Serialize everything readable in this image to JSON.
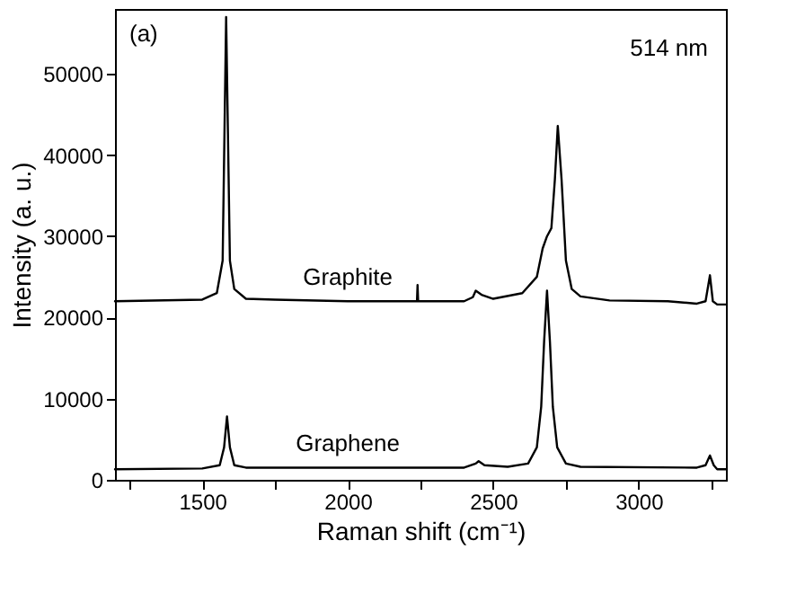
{
  "chart_data": {
    "type": "line",
    "xlabel": "Raman shift (cm⁻¹)",
    "ylabel": "Intensity (a. u.)",
    "annotations": [
      "(a)",
      "514 nm"
    ],
    "xlim": [
      1200,
      3300
    ],
    "ylim": [
      0,
      58000
    ],
    "xticks": [
      {
        "value": 1250,
        "label": null
      },
      1500,
      {
        "value": 1750,
        "label": null
      },
      2000,
      {
        "value": 2250,
        "label": null
      },
      2500,
      {
        "value": 2750,
        "label": null
      },
      3000,
      {
        "value": 3250,
        "label": null
      }
    ],
    "yticks": [
      0,
      10000,
      20000,
      30000,
      40000,
      50000
    ],
    "grid": false,
    "marker": "none",
    "line_style": "solid",
    "series": [
      {
        "name": "Graphite",
        "color": "#000000",
        "x": [
          1200,
          1500,
          1550,
          1570,
          1582,
          1595,
          1610,
          1650,
          1750,
          2000,
          2238,
          2240,
          2242,
          2400,
          2430,
          2440,
          2460,
          2500,
          2600,
          2650,
          2670,
          2685,
          2700,
          2712,
          2722,
          2735,
          2750,
          2770,
          2800,
          2900,
          3100,
          3200,
          3230,
          3245,
          3255,
          3270,
          3300
        ],
        "values": [
          22000,
          22200,
          23000,
          27000,
          57000,
          27000,
          23500,
          22300,
          22200,
          22000,
          22000,
          24000,
          22000,
          22000,
          22500,
          23300,
          22800,
          22300,
          23000,
          25000,
          28500,
          30000,
          31000,
          37000,
          43600,
          37000,
          27000,
          23500,
          22600,
          22100,
          22000,
          21700,
          22000,
          25200,
          22000,
          21600,
          21600
        ]
      },
      {
        "name": "Graphene",
        "color": "#000000",
        "x": [
          1200,
          1500,
          1560,
          1575,
          1585,
          1595,
          1610,
          1650,
          2000,
          2400,
          2440,
          2450,
          2470,
          2550,
          2620,
          2650,
          2665,
          2675,
          2685,
          2695,
          2705,
          2720,
          2750,
          2800,
          3200,
          3230,
          3245,
          3258,
          3270,
          3300
        ],
        "values": [
          1300,
          1400,
          1800,
          4000,
          7800,
          4000,
          1800,
          1500,
          1500,
          1500,
          2000,
          2300,
          1800,
          1600,
          2000,
          4000,
          9000,
          17000,
          23300,
          17000,
          9000,
          4000,
          2000,
          1600,
          1500,
          1800,
          3000,
          1800,
          1300,
          1300
        ]
      }
    ]
  }
}
